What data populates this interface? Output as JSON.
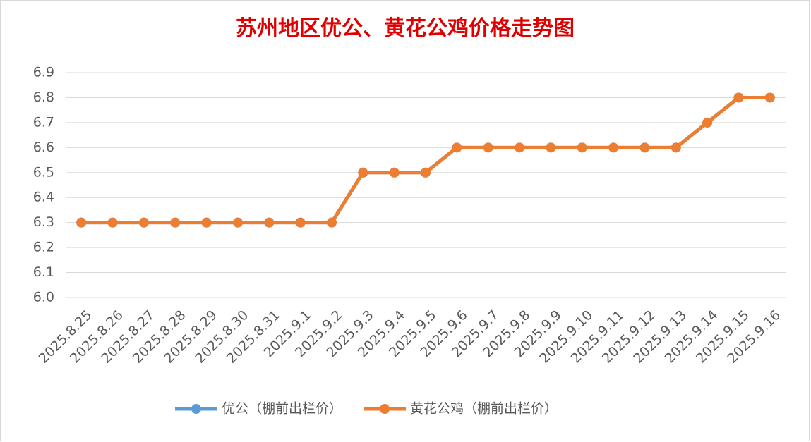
{
  "chart_data": {
    "type": "line",
    "title": "苏州地区优公、黄花公鸡价格走势图",
    "categories": [
      "2025.8.25",
      "2025.8.26",
      "2025.8.27",
      "2025.8.28",
      "2025.8.29",
      "2025.8.30",
      "2025.8.31",
      "2025.9.1",
      "2025.9.2",
      "2025.9.3",
      "2025.9.4",
      "2025.9.5",
      "2025.9.6",
      "2025.9.7",
      "2025.9.8",
      "2025.9.9",
      "2025.9.10",
      "2025.9.11",
      "2025.9.12",
      "2025.9.13",
      "2025.9.14",
      "2025.9.15",
      "2025.9.16"
    ],
    "series": [
      {
        "name": "优公（棚前出栏价）",
        "color": "#5b9bd5",
        "values": [
          6.3,
          6.3,
          6.3,
          6.3,
          6.3,
          6.3,
          6.3,
          6.3,
          6.3,
          6.5,
          6.5,
          6.5,
          6.6,
          6.6,
          6.6,
          6.6,
          6.6,
          6.6,
          6.6,
          6.6,
          6.7,
          6.8,
          6.8
        ]
      },
      {
        "name": "黄花公鸡（棚前出栏价）",
        "color": "#ed7d31",
        "values": [
          6.3,
          6.3,
          6.3,
          6.3,
          6.3,
          6.3,
          6.3,
          6.3,
          6.3,
          6.5,
          6.5,
          6.5,
          6.6,
          6.6,
          6.6,
          6.6,
          6.6,
          6.6,
          6.6,
          6.6,
          6.7,
          6.8,
          6.8
        ]
      }
    ],
    "ylim": [
      6.0,
      6.9
    ],
    "yticks": [
      {
        "value": 6,
        "label": "6.0"
      },
      6.1,
      6.2,
      6.3,
      6.4,
      6.5,
      6.6,
      6.7,
      6.8,
      6.9
    ],
    "grid": true,
    "legend": "bottom"
  }
}
